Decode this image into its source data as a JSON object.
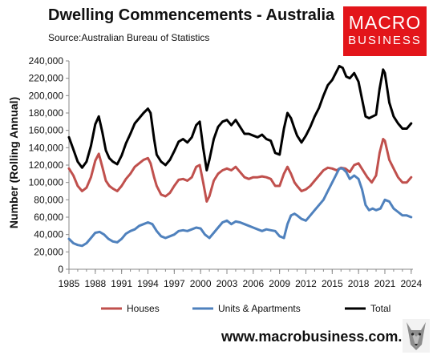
{
  "logo": {
    "line1": "MACRO",
    "line2": "BUSINESS",
    "color": "#e3151a"
  },
  "website": "www.macrobusiness.com.au",
  "chart_data": {
    "type": "line",
    "title": "Dwelling Commencements - Australia",
    "subtitle": "Source:Australian Bureau of Statistics",
    "ylabel": "Number (Rolling Annual)",
    "xlabel": "",
    "ylim": [
      0,
      240000
    ],
    "yticks": [
      0,
      20000,
      40000,
      60000,
      80000,
      100000,
      120000,
      140000,
      160000,
      180000,
      200000,
      220000,
      240000
    ],
    "ytick_labels": [
      "0",
      "20,000",
      "40,000",
      "60,000",
      "80,000",
      "100,000",
      "120,000",
      "140,000",
      "160,000",
      "180,000",
      "200,000",
      "220,000",
      "240,000"
    ],
    "xlim": [
      1985,
      2024.2
    ],
    "xticks": [
      1985,
      1988,
      1991,
      1994,
      1997,
      2000,
      2003,
      2006,
      2009,
      2012,
      2015,
      2018,
      2021,
      2024
    ],
    "xtick_labels": [
      "1985",
      "1988",
      "1991",
      "1994",
      "1997",
      "2000",
      "2003",
      "2006",
      "2009",
      "2012",
      "2015",
      "2018",
      "2021",
      "2024"
    ],
    "grid": false,
    "legend_position": "bottom",
    "series": [
      {
        "name": "Houses",
        "color": "#c0504d",
        "x": [
          1985,
          1985.5,
          1986,
          1986.5,
          1987,
          1987.5,
          1988,
          1988.4,
          1988.8,
          1989.2,
          1989.6,
          1990,
          1990.5,
          1991,
          1991.5,
          1992,
          1992.5,
          1993,
          1993.5,
          1994,
          1994.3,
          1994.7,
          1995,
          1995.5,
          1996,
          1996.5,
          1997,
          1997.5,
          1998,
          1998.5,
          1999,
          1999.5,
          1999.9,
          2000.3,
          2000.7,
          2001,
          2001.5,
          2002,
          2002.5,
          2003,
          2003.5,
          2004,
          2004.5,
          2005,
          2005.5,
          2006,
          2006.5,
          2007,
          2007.5,
          2008,
          2008.5,
          2009,
          2009.5,
          2009.9,
          2010.3,
          2010.7,
          2011,
          2011.5,
          2012,
          2012.5,
          2013,
          2013.5,
          2014,
          2014.5,
          2015,
          2015.5,
          2016,
          2016.5,
          2017,
          2017.5,
          2018,
          2018.5,
          2019,
          2019.5,
          2020,
          2020.4,
          2020.8,
          2021,
          2021.5,
          2022,
          2022.5,
          2023,
          2023.5,
          2024
        ],
        "y": [
          116000,
          108000,
          96000,
          90000,
          94000,
          106000,
          125000,
          133000,
          118000,
          102000,
          96000,
          93000,
          90000,
          96000,
          104000,
          110000,
          118000,
          122000,
          126000,
          128000,
          122000,
          106000,
          96000,
          86000,
          84000,
          88000,
          96000,
          103000,
          104000,
          102000,
          106000,
          118000,
          120000,
          100000,
          78000,
          84000,
          102000,
          110000,
          114000,
          116000,
          114000,
          118000,
          112000,
          106000,
          104000,
          106000,
          106000,
          107000,
          106000,
          104000,
          96000,
          96000,
          110000,
          118000,
          110000,
          100000,
          96000,
          90000,
          92000,
          96000,
          102000,
          108000,
          114000,
          117000,
          116000,
          114000,
          117000,
          116000,
          112000,
          120000,
          122000,
          114000,
          106000,
          100000,
          108000,
          134000,
          150000,
          148000,
          126000,
          116000,
          106000,
          100000,
          100000,
          106000
        ]
      },
      {
        "name": "Units & Apartments",
        "color": "#4f81bd",
        "x": [
          1985,
          1985.5,
          1986,
          1986.5,
          1987,
          1987.5,
          1988,
          1988.5,
          1989,
          1989.5,
          1990,
          1990.5,
          1991,
          1991.5,
          1992,
          1992.5,
          1993,
          1993.5,
          1994,
          1994.5,
          1995,
          1995.5,
          1996,
          1996.5,
          1997,
          1997.5,
          1998,
          1998.5,
          1999,
          1999.5,
          2000,
          2000.5,
          2001,
          2001.5,
          2002,
          2002.5,
          2003,
          2003.5,
          2004,
          2004.5,
          2005,
          2005.5,
          2006,
          2006.5,
          2007,
          2007.5,
          2008,
          2008.5,
          2009,
          2009.5,
          2009.9,
          2010.3,
          2010.7,
          2011,
          2011.5,
          2012,
          2012.5,
          2013,
          2013.5,
          2014,
          2014.5,
          2015,
          2015.4,
          2015.8,
          2016.2,
          2016.6,
          2017,
          2017.5,
          2018,
          2018.4,
          2018.8,
          2019.2,
          2019.6,
          2020,
          2020.5,
          2021,
          2021.5,
          2022,
          2022.5,
          2023,
          2023.5,
          2024
        ],
        "y": [
          35000,
          30000,
          28000,
          27000,
          30000,
          36000,
          42000,
          43000,
          40000,
          35000,
          32000,
          31000,
          35000,
          41000,
          44000,
          46000,
          50000,
          52000,
          54000,
          52000,
          44000,
          38000,
          36000,
          38000,
          40000,
          44000,
          45000,
          44000,
          46000,
          48000,
          47000,
          40000,
          36000,
          42000,
          48000,
          54000,
          56000,
          52000,
          55000,
          54000,
          52000,
          50000,
          48000,
          46000,
          44000,
          46000,
          45000,
          44000,
          38000,
          36000,
          52000,
          62000,
          64000,
          62000,
          58000,
          56000,
          62000,
          68000,
          74000,
          80000,
          90000,
          100000,
          108000,
          116000,
          116000,
          112000,
          104000,
          108000,
          104000,
          92000,
          74000,
          68000,
          70000,
          68000,
          70000,
          80000,
          78000,
          70000,
          66000,
          62000,
          62000,
          60000
        ]
      },
      {
        "name": "Total",
        "color": "#000000",
        "x": [
          1985,
          1985.5,
          1986,
          1986.5,
          1987,
          1987.5,
          1988,
          1988.4,
          1988.8,
          1989.2,
          1989.6,
          1990,
          1990.5,
          1991,
          1991.5,
          1992,
          1992.5,
          1993,
          1993.5,
          1994,
          1994.3,
          1994.7,
          1995,
          1995.5,
          1996,
          1996.5,
          1997,
          1997.5,
          1998,
          1998.5,
          1999,
          1999.5,
          1999.9,
          2000.3,
          2000.7,
          2001,
          2001.5,
          2002,
          2002.5,
          2003,
          2003.5,
          2004,
          2004.5,
          2005,
          2005.5,
          2006,
          2006.5,
          2007,
          2007.5,
          2008,
          2008.5,
          2009,
          2009.5,
          2009.9,
          2010.3,
          2010.7,
          2011,
          2011.5,
          2012,
          2012.5,
          2013,
          2013.5,
          2014,
          2014.5,
          2015,
          2015.4,
          2015.8,
          2016.2,
          2016.6,
          2017,
          2017.5,
          2018,
          2018.4,
          2018.8,
          2019.2,
          2019.6,
          2020,
          2020.4,
          2020.8,
          2021,
          2021.5,
          2022,
          2022.5,
          2023,
          2023.5,
          2024
        ],
        "y": [
          152000,
          138000,
          124000,
          117000,
          124000,
          142000,
          167000,
          176000,
          158000,
          137000,
          128000,
          124000,
          121000,
          131000,
          145000,
          156000,
          168000,
          174000,
          180000,
          185000,
          180000,
          150000,
          132000,
          124000,
          120000,
          126000,
          136000,
          147000,
          150000,
          146000,
          152000,
          166000,
          170000,
          140000,
          114000,
          126000,
          150000,
          164000,
          170000,
          172000,
          166000,
          172000,
          164000,
          156000,
          156000,
          154000,
          152000,
          155000,
          150000,
          148000,
          134000,
          132000,
          162000,
          180000,
          174000,
          162000,
          154000,
          146000,
          154000,
          164000,
          176000,
          186000,
          200000,
          212000,
          218000,
          226000,
          234000,
          232000,
          222000,
          220000,
          226000,
          216000,
          196000,
          176000,
          174000,
          176000,
          178000,
          208000,
          230000,
          226000,
          192000,
          176000,
          168000,
          162000,
          162000,
          168000
        ]
      }
    ]
  }
}
